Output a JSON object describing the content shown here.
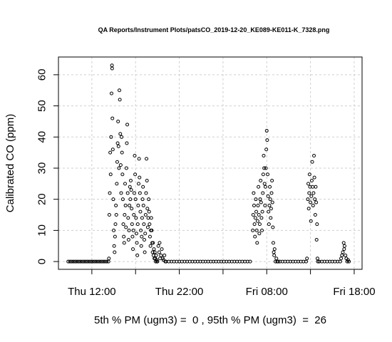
{
  "chart_data": {
    "type": "scatter",
    "title": "QA Reports/Instrument Plots/patsCO_2019-12-20_KE089-KE011-K_7328.png",
    "xlabel": "5th % PM (ugm3) =  0 , 95th % PM (ugm3)  =  26",
    "ylabel": "Calibrated CO (ppm)",
    "x": [
      9.3,
      9.5,
      9.7,
      9.9,
      10.1,
      10.3,
      10.5,
      10.7,
      10.9,
      11.1,
      11.3,
      11.5,
      11.7,
      11.9,
      12.1,
      12.3,
      12.5,
      12.7,
      12.9,
      13.1,
      13.3,
      13.5,
      13.7,
      13.9,
      13.95,
      14.0,
      14.05,
      14.1,
      14.15,
      14.2,
      14.25,
      14.3,
      14.32,
      14.35,
      14.4,
      14.45,
      14.5,
      14.55,
      14.6,
      14.65,
      14.7,
      14.75,
      14.8,
      14.85,
      14.9,
      14.95,
      15.0,
      15.05,
      15.1,
      15.15,
      15.2,
      15.25,
      15.3,
      15.35,
      15.4,
      15.45,
      15.5,
      15.55,
      15.6,
      15.65,
      15.7,
      15.75,
      15.8,
      15.85,
      15.9,
      15.95,
      16.0,
      16.05,
      16.1,
      16.15,
      16.2,
      16.25,
      16.3,
      16.35,
      16.4,
      16.45,
      16.5,
      16.55,
      16.6,
      16.65,
      16.7,
      16.75,
      16.8,
      16.85,
      16.9,
      16.95,
      17.0,
      17.05,
      17.1,
      17.15,
      17.2,
      17.25,
      17.3,
      17.35,
      17.4,
      17.45,
      17.5,
      17.55,
      17.6,
      17.65,
      17.7,
      17.75,
      17.8,
      17.85,
      17.9,
      17.95,
      18.0,
      18.05,
      18.1,
      18.15,
      18.2,
      18.25,
      18.3,
      18.35,
      18.4,
      18.45,
      18.5,
      18.55,
      18.6,
      18.65,
      18.7,
      18.75,
      18.8,
      18.85,
      18.9,
      18.95,
      19.0,
      19.05,
      19.1,
      19.15,
      19.2,
      19.25,
      19.3,
      19.35,
      19.4,
      19.45,
      19.5,
      19.6,
      19.7,
      19.75,
      19.8,
      19.9,
      20.0,
      20.1,
      20.2,
      20.3,
      20.4,
      20.5,
      20.8,
      21.1,
      21.4,
      21.7,
      22,
      22.3,
      22.6,
      22.9,
      23.2,
      23.5,
      23.8,
      24.1,
      24.4,
      24.7,
      25,
      25.3,
      25.6,
      25.9,
      26.2,
      26.5,
      26.8,
      27.1,
      27.4,
      27.7,
      28,
      28.3,
      28.6,
      28.9,
      29.2,
      29.5,
      29.8,
      30.1,
      30.4,
      30.45,
      30.5,
      30.55,
      30.6,
      30.65,
      30.7,
      30.75,
      30.8,
      30.85,
      30.9,
      30.95,
      31.0,
      31.05,
      31.1,
      31.15,
      31.2,
      31.25,
      31.3,
      31.35,
      31.4,
      31.45,
      31.5,
      31.55,
      31.6,
      31.65,
      31.7,
      31.75,
      31.8,
      31.85,
      31.9,
      31.95,
      32.0,
      32.05,
      32.1,
      32.15,
      32.2,
      32.25,
      32.3,
      32.35,
      32.4,
      32.45,
      32.5,
      32.55,
      32.6,
      32.65,
      32.7,
      32.75,
      32.8,
      32.85,
      32.9,
      33.0,
      33.1,
      33.2,
      33.3,
      33.5,
      33.8,
      34.1,
      34.4,
      34.7,
      35,
      35.3,
      35.6,
      35.9,
      36.2,
      36.5,
      36.6,
      36.7,
      36.75,
      36.8,
      36.85,
      36.9,
      36.95,
      37.0,
      37.05,
      37.1,
      37.15,
      37.2,
      37.25,
      37.3,
      37.35,
      37.4,
      37.45,
      37.5,
      37.55,
      37.6,
      37.65,
      37.7,
      37.75,
      37.8,
      37.85,
      38,
      38.3,
      38.6,
      38.9,
      39.2,
      39.5,
      39.8,
      40.1,
      40.4,
      40.5,
      40.6,
      40.7,
      40.8,
      40.85,
      40.9,
      41.0,
      41.1,
      41.2,
      41.3,
      41.4
    ],
    "values": [
      0,
      0,
      0,
      0,
      0,
      0,
      0,
      0,
      0,
      0,
      0,
      0,
      0,
      0,
      0,
      0,
      0,
      0,
      0,
      0,
      0,
      0,
      0,
      0,
      1,
      15,
      22,
      35,
      28,
      40,
      54,
      63,
      62,
      46,
      36,
      20,
      10,
      5,
      3,
      8,
      12,
      18,
      15,
      25,
      32,
      38,
      45,
      37,
      30,
      55,
      52,
      41,
      31,
      22,
      40,
      35,
      28,
      20,
      12,
      8,
      6,
      15,
      25,
      18,
      11,
      30,
      38,
      44,
      22,
      14,
      7,
      10,
      18,
      24,
      20,
      26,
      23,
      17,
      12,
      8,
      4,
      10,
      15,
      22,
      34,
      28,
      20,
      14,
      9,
      6,
      2,
      12,
      18,
      25,
      33,
      27,
      22,
      16,
      10,
      5,
      8,
      14,
      20,
      24,
      18,
      12,
      7,
      3,
      9,
      15,
      22,
      33,
      26,
      17,
      11,
      14,
      20,
      16,
      12,
      8,
      5,
      10,
      14,
      10,
      6,
      3,
      6,
      2,
      4,
      1,
      3,
      1,
      0,
      2,
      0.5,
      0,
      0,
      5,
      3,
      6,
      1,
      2,
      4,
      1,
      0.5,
      2,
      0,
      0,
      0,
      0,
      0,
      0,
      0,
      0,
      0,
      0,
      0,
      0,
      0,
      0,
      0,
      0,
      0,
      0,
      0,
      0,
      0,
      0,
      0,
      0,
      0,
      0,
      0,
      0,
      0,
      0,
      0,
      0,
      0,
      0,
      10,
      15,
      22,
      18,
      12,
      8,
      14,
      20,
      16,
      10,
      6,
      13,
      18,
      24,
      15,
      9,
      12,
      20,
      26,
      19,
      14,
      10,
      16,
      22,
      28,
      34,
      30,
      25,
      18,
      24,
      30,
      36,
      42,
      39,
      28,
      21,
      16,
      12,
      18,
      24,
      20,
      14,
      17,
      22,
      26,
      19,
      11,
      6,
      3,
      2,
      4,
      0,
      1,
      0,
      0,
      0,
      0,
      0,
      0,
      0,
      0,
      0,
      0,
      0,
      0,
      0,
      1,
      20,
      25,
      17,
      22,
      28,
      24,
      19,
      13,
      21,
      26,
      32,
      24,
      18,
      22,
      34,
      27,
      20,
      15,
      24,
      19,
      7,
      12,
      1,
      0,
      0,
      0,
      0,
      0,
      0,
      0,
      0,
      0,
      0,
      1,
      2,
      3,
      6,
      4,
      5,
      2,
      1,
      0,
      0.5,
      0
    ],
    "xlim": [
      8.18,
      42.9
    ],
    "ylim": [
      -2.5,
      65.7
    ],
    "xticks": [
      {
        "value": 12,
        "label": "Thu 12:00"
      },
      {
        "value": 22,
        "label": "Thu 22:00"
      },
      {
        "value": 32,
        "label": "Fri 08:00"
      },
      {
        "value": 42,
        "label": "Fri 18:00"
      }
    ],
    "xminor_ticks": [
      17,
      27,
      37
    ],
    "yticks": [
      0,
      10,
      20,
      30,
      40,
      50,
      60
    ],
    "grid": true,
    "color": "#000000"
  }
}
